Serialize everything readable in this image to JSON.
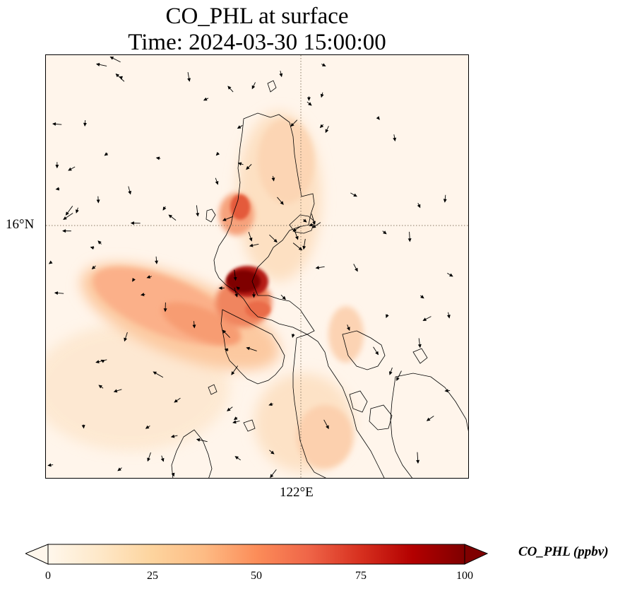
{
  "title": {
    "line1": "CO_PHL at surface",
    "line2": "Time: 2024-03-30 15:00:00"
  },
  "map": {
    "lat_label": "16°N",
    "lon_label": "122°E",
    "gridline_color": "#8a7a66",
    "background_color": "#fff5eb",
    "coastline_color": "#000000",
    "vector_arrows": "wind vectors shown as black arrows"
  },
  "colorbar": {
    "label": "CO_PHL (ppbv)",
    "min": 0,
    "max": 100,
    "ticks": [
      "0",
      "25",
      "50",
      "75",
      "100"
    ],
    "colormap": "OrRd",
    "colors": [
      "#fff7ec",
      "#fee8c8",
      "#fdd49e",
      "#fdbb84",
      "#fc8d59",
      "#ef6548",
      "#d7301f",
      "#b30000",
      "#7f0000"
    ],
    "extend": "both"
  }
}
